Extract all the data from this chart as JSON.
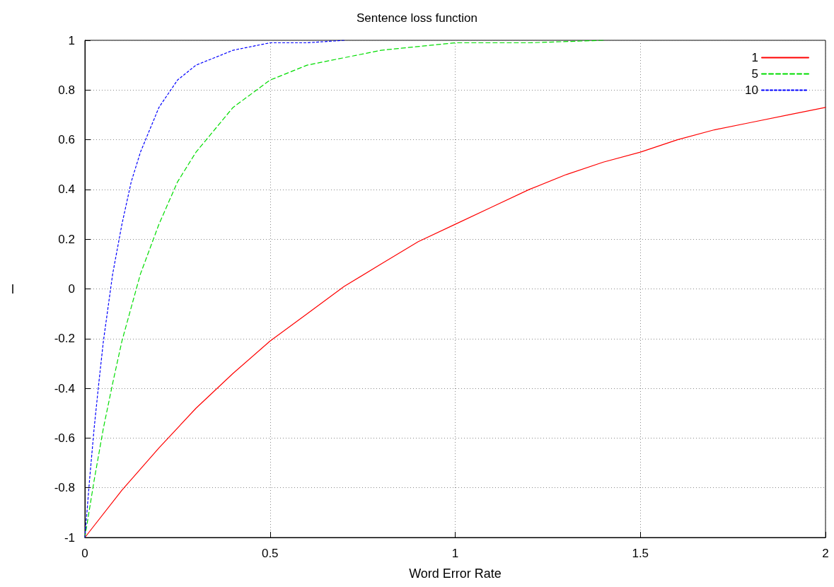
{
  "chart_data": {
    "type": "line",
    "title": "Sentence loss function",
    "xlabel": "Word Error Rate",
    "ylabel": "l",
    "xlim": [
      0,
      2
    ],
    "xticks": [
      0,
      0.5,
      1,
      1.5,
      2
    ],
    "ylim": [
      -1,
      1
    ],
    "yticks": [
      -1,
      -0.8,
      -0.6,
      -0.4,
      -0.2,
      0,
      0.2,
      0.4,
      0.6,
      0.8,
      1
    ],
    "grid": true,
    "legend": "top right",
    "marker": "none",
    "series": [
      {
        "name": "1",
        "color": "#ff0000",
        "line_style": "solid",
        "x": [
          0,
          0.1,
          0.2,
          0.3,
          0.4,
          0.5,
          0.6,
          0.7,
          0.8,
          0.9,
          1,
          1.1,
          1.2,
          1.3,
          1.4,
          1.5,
          1.6,
          1.7,
          1.8,
          1.9,
          2
        ],
        "values": [
          -1,
          -0.81,
          -0.64,
          -0.48,
          -0.34,
          -0.21,
          -0.1,
          0.01,
          0.1,
          0.19,
          0.26,
          0.33,
          0.4,
          0.46,
          0.51,
          0.55,
          0.6,
          0.64,
          0.67,
          0.7,
          0.73
        ]
      },
      {
        "name": "5",
        "color": "#00dd00",
        "line_style": "dashed",
        "x": [
          0,
          0.025,
          0.05,
          0.075,
          0.1,
          0.15,
          0.2,
          0.25,
          0.3,
          0.4,
          0.5,
          0.6,
          0.8,
          1,
          1.2,
          1.4
        ],
        "values": [
          -1,
          -0.77,
          -0.56,
          -0.38,
          -0.21,
          0.06,
          0.26,
          0.43,
          0.55,
          0.73,
          0.84,
          0.9,
          0.96,
          0.99,
          0.99,
          1
        ]
      },
      {
        "name": "10",
        "color": "#0000ff",
        "line_style": "dotted",
        "x": [
          0,
          0.0125,
          0.025,
          0.0375,
          0.05,
          0.075,
          0.1,
          0.125,
          0.15,
          0.2,
          0.25,
          0.3,
          0.4,
          0.5,
          0.6,
          0.7
        ],
        "values": [
          -1,
          -0.77,
          -0.56,
          -0.38,
          -0.21,
          0.06,
          0.26,
          0.43,
          0.55,
          0.73,
          0.84,
          0.9,
          0.96,
          0.99,
          0.99,
          1
        ]
      }
    ]
  }
}
